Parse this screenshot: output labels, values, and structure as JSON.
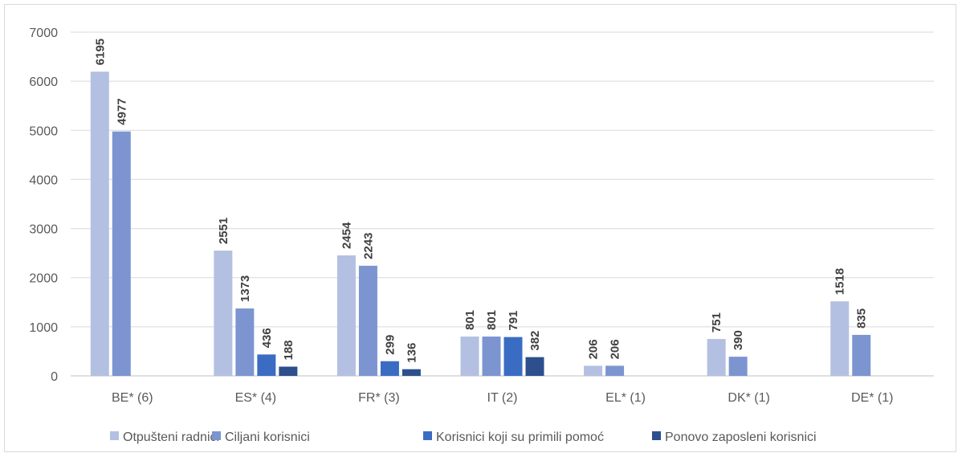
{
  "chart_data": {
    "type": "bar",
    "categories": [
      "BE* (6)",
      "ES* (4)",
      "FR* (3)",
      "IT (2)",
      "EL* (1)",
      "DK* (1)",
      "DE* (1)"
    ],
    "series": [
      {
        "name": "Otpušteni radnici",
        "color": "#b4c0e2",
        "values": [
          6195,
          2551,
          2454,
          801,
          206,
          751,
          1518
        ]
      },
      {
        "name": "Ciljani korisnici",
        "color": "#7c95d1",
        "values": [
          4977,
          1373,
          2243,
          801,
          206,
          390,
          835
        ]
      },
      {
        "name": "Korisnici koji su primili pomoć",
        "color": "#3b6cc4",
        "values": [
          null,
          436,
          299,
          791,
          null,
          null,
          null
        ]
      },
      {
        "name": "Ponovo zaposleni korisnici",
        "color": "#2d4f8e",
        "values": [
          null,
          188,
          136,
          382,
          null,
          null,
          null
        ]
      }
    ],
    "yticks": [
      0,
      1000,
      2000,
      3000,
      4000,
      5000,
      6000,
      7000
    ],
    "ylim": [
      0,
      7000
    ],
    "grid": true,
    "legend_position": "bottom"
  }
}
